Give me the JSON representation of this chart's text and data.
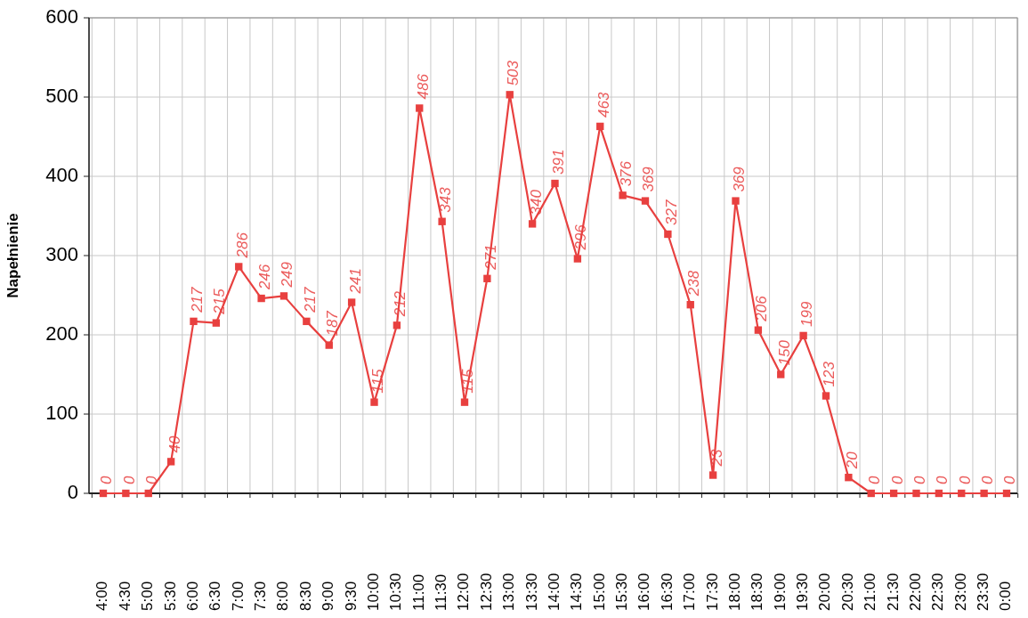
{
  "chart_data": {
    "type": "line",
    "ylabel": "Napełnienie",
    "categories": [
      "4:00",
      "4:30",
      "5:00",
      "5:30",
      "6:00",
      "6:30",
      "7:00",
      "7:30",
      "8:00",
      "8:30",
      "9:00",
      "9:30",
      "10:00",
      "10:30",
      "11:00",
      "11:30",
      "12:00",
      "12:30",
      "13:00",
      "13:30",
      "14:00",
      "14:30",
      "15:00",
      "15:30",
      "16:00",
      "16:30",
      "17:00",
      "17:30",
      "18:00",
      "18:30",
      "19:00",
      "19:30",
      "20:00",
      "20:30",
      "21:00",
      "21:30",
      "22:00",
      "22:30",
      "23:00",
      "23:30",
      "0:00"
    ],
    "series": [
      {
        "color": "#e8403f",
        "values": [
          0,
          0,
          0,
          40,
          217,
          215,
          286,
          246,
          249,
          217,
          187,
          241,
          115,
          212,
          486,
          343,
          115,
          271,
          503,
          340,
          391,
          296,
          463,
          376,
          369,
          327,
          238,
          23,
          369,
          206,
          150,
          199,
          123,
          20,
          0,
          0,
          0,
          0,
          0,
          0,
          0
        ]
      }
    ],
    "ylim": [
      0,
      600
    ],
    "yticks": [
      0,
      100,
      200,
      300,
      400,
      500,
      600
    ],
    "grid": true,
    "marker": "square",
    "line_style": "solid",
    "data_labels": true
  }
}
